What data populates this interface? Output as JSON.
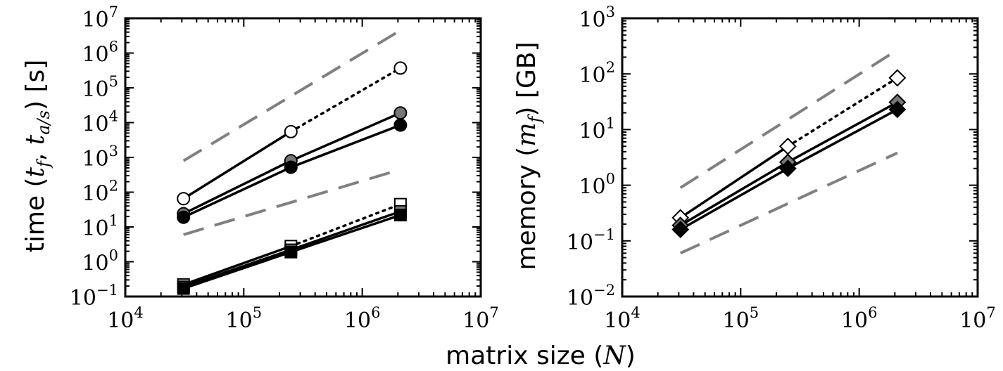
{
  "figure": {
    "xlabel": {
      "text": "matrix size (",
      "sym": "N",
      "close": ")"
    }
  },
  "chart_data": [
    {
      "type": "line",
      "xscale": "log",
      "yscale": "log",
      "xlim": [
        10000,
        10000000
      ],
      "ylim": [
        0.1,
        10000000
      ],
      "ylabel": {
        "text": "time (",
        "sym": "t",
        "sub1": "f",
        "sep": ", ",
        "sub2": "a/s",
        "close": ") [s]"
      },
      "xticks": [
        {
          "base": "10",
          "exp": "4"
        },
        {
          "base": "10",
          "exp": "5"
        },
        {
          "base": "10",
          "exp": "6"
        },
        {
          "base": "10",
          "exp": "7"
        }
      ],
      "yticks": [
        {
          "base": "10",
          "exp": "−1"
        },
        {
          "base": "10",
          "exp": "0"
        },
        {
          "base": "10",
          "exp": "1"
        },
        {
          "base": "10",
          "exp": "2"
        },
        {
          "base": "10",
          "exp": "3"
        },
        {
          "base": "10",
          "exp": "4"
        },
        {
          "base": "10",
          "exp": "5"
        },
        {
          "base": "10",
          "exp": "6"
        },
        {
          "base": "10",
          "exp": "7"
        }
      ],
      "series": [
        {
          "name": "circle-open",
          "marker": "circle",
          "fill": "#ffffff",
          "x": [
            31000,
            250000,
            2100000
          ],
          "y": [
            65,
            5500,
            370000
          ],
          "dotted_from": 1
        },
        {
          "name": "circle-gray",
          "marker": "circle",
          "fill": "#777777",
          "x": [
            31000,
            250000,
            2100000
          ],
          "y": [
            24,
            800,
            19000
          ],
          "dotted_from": null
        },
        {
          "name": "circle-black",
          "marker": "circle",
          "fill": "#000000",
          "x": [
            31000,
            250000,
            2100000
          ],
          "y": [
            19,
            520,
            8500
          ],
          "dotted_from": null
        },
        {
          "name": "square-open",
          "marker": "square",
          "fill": "#ffffff",
          "x": [
            31000,
            250000,
            2100000
          ],
          "y": [
            0.22,
            2.8,
            45
          ],
          "dotted_from": 1
        },
        {
          "name": "square-gray",
          "marker": "square",
          "fill": "#777777",
          "x": [
            31000,
            250000,
            2100000
          ],
          "y": [
            0.19,
            2.2,
            28
          ],
          "dotted_from": null
        },
        {
          "name": "square-black",
          "marker": "square",
          "fill": "#000000",
          "x": [
            31000,
            250000,
            2100000
          ],
          "y": [
            0.17,
            1.9,
            22
          ],
          "dotted_from": null
        }
      ],
      "reference_lines": [
        {
          "name": "upper-guide",
          "x": [
            31000,
            2100000
          ],
          "y": [
            800,
            4500000
          ]
        },
        {
          "name": "lower-guide",
          "x": [
            31000,
            2100000
          ],
          "y": [
            6,
            450
          ]
        }
      ]
    },
    {
      "type": "line",
      "xscale": "log",
      "yscale": "log",
      "xlim": [
        10000,
        10000000
      ],
      "ylim": [
        0.01,
        1000
      ],
      "ylabel": {
        "text": "memory (",
        "sym": "m",
        "sub1": "f",
        "close": ") [GB]"
      },
      "xticks": [
        {
          "base": "10",
          "exp": "4"
        },
        {
          "base": "10",
          "exp": "5"
        },
        {
          "base": "10",
          "exp": "6"
        },
        {
          "base": "10",
          "exp": "7"
        }
      ],
      "yticks": [
        {
          "base": "10",
          "exp": "−2"
        },
        {
          "base": "10",
          "exp": "−1"
        },
        {
          "base": "10",
          "exp": "0"
        },
        {
          "base": "10",
          "exp": "1"
        },
        {
          "base": "10",
          "exp": "2"
        },
        {
          "base": "10",
          "exp": "3"
        }
      ],
      "series": [
        {
          "name": "diamond-open",
          "marker": "diamond",
          "fill": "#ffffff",
          "x": [
            31000,
            250000,
            2100000
          ],
          "y": [
            0.26,
            5,
            85
          ],
          "dotted_from": 1
        },
        {
          "name": "diamond-gray",
          "marker": "diamond",
          "fill": "#777777",
          "x": [
            31000,
            250000,
            2100000
          ],
          "y": [
            0.19,
            2.6,
            31
          ],
          "dotted_from": null
        },
        {
          "name": "diamond-black",
          "marker": "diamond",
          "fill": "#000000",
          "x": [
            31000,
            250000,
            2100000
          ],
          "y": [
            0.16,
            2,
            23
          ],
          "dotted_from": null
        }
      ],
      "reference_lines": [
        {
          "name": "upper-guide",
          "x": [
            31000,
            2100000
          ],
          "y": [
            0.9,
            270
          ]
        },
        {
          "name": "lower-guide",
          "x": [
            31000,
            2100000
          ],
          "y": [
            0.06,
            3.8
          ]
        }
      ]
    }
  ]
}
